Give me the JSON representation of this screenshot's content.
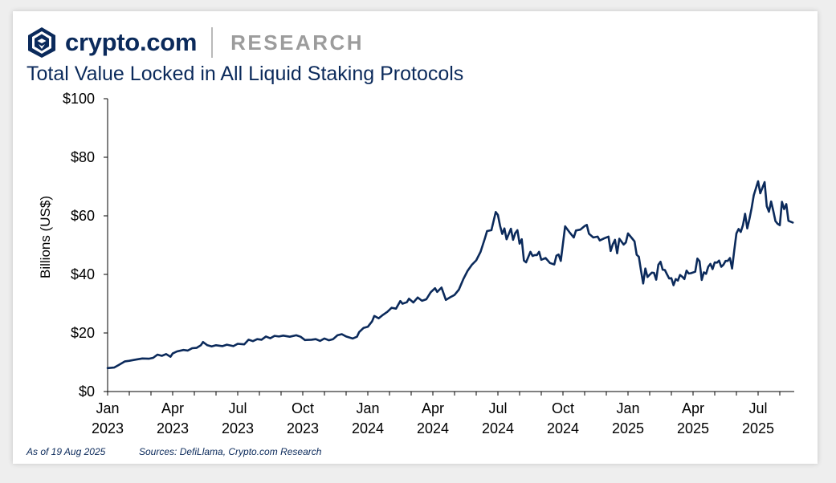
{
  "brand": {
    "name": "crypto.com",
    "section": "RESEARCH",
    "colors": {
      "navy": "#0b2a5b",
      "gray": "#9c9c9c"
    }
  },
  "footer": {
    "as_of": "As of 19 Aug 2025",
    "sources": "Sources: DefiLlama, Crypto.com Research"
  },
  "chart_data": {
    "type": "line",
    "title": "Total Value Locked in All Liquid Staking Protocols",
    "xlabel": "",
    "ylabel": "Billions (US$)",
    "ylim": [
      0,
      100
    ],
    "yticks": [
      0,
      20,
      40,
      60,
      80,
      100
    ],
    "ytick_labels": [
      "$0",
      "$20",
      "$40",
      "$60",
      "$80",
      "$100"
    ],
    "xticks": [
      {
        "date": "2023-01",
        "line1": "Jan",
        "line2": "2023"
      },
      {
        "date": "2023-04",
        "line1": "Apr",
        "line2": "2023"
      },
      {
        "date": "2023-07",
        "line1": "Jul",
        "line2": "2023"
      },
      {
        "date": "2023-10",
        "line1": "Oct",
        "line2": "2023"
      },
      {
        "date": "2024-01",
        "line1": "Jan",
        "line2": "2024"
      },
      {
        "date": "2024-04",
        "line1": "Apr",
        "line2": "2024"
      },
      {
        "date": "2024-07",
        "line1": "Jul",
        "line2": "2024"
      },
      {
        "date": "2024-10",
        "line1": "Oct",
        "line2": "2024"
      },
      {
        "date": "2025-01",
        "line1": "Jan",
        "line2": "2025"
      },
      {
        "date": "2025-04",
        "line1": "Apr",
        "line2": "2025"
      },
      {
        "date": "2025-07",
        "line1": "Jul",
        "line2": "2025"
      }
    ],
    "x_unit": "months since Jan 2023",
    "xlim": [
      0,
      31.6
    ],
    "line_color": "#0b2a5b",
    "series": [
      {
        "name": "TVL",
        "points": [
          [
            0.0,
            8.0
          ],
          [
            0.3,
            8.2
          ],
          [
            0.5,
            9.0
          ],
          [
            0.8,
            10.3
          ],
          [
            1.0,
            10.5
          ],
          [
            1.3,
            10.9
          ],
          [
            1.6,
            11.3
          ],
          [
            1.9,
            11.2
          ],
          [
            2.1,
            11.5
          ],
          [
            2.3,
            12.6
          ],
          [
            2.5,
            12.2
          ],
          [
            2.7,
            12.8
          ],
          [
            2.9,
            11.9
          ],
          [
            3.0,
            13.0
          ],
          [
            3.2,
            13.7
          ],
          [
            3.5,
            14.2
          ],
          [
            3.7,
            14.0
          ],
          [
            3.9,
            14.8
          ],
          [
            4.1,
            14.9
          ],
          [
            4.3,
            15.8
          ],
          [
            4.4,
            16.9
          ],
          [
            4.6,
            15.8
          ],
          [
            4.8,
            15.4
          ],
          [
            5.0,
            15.8
          ],
          [
            5.3,
            15.5
          ],
          [
            5.5,
            16.0
          ],
          [
            5.8,
            15.5
          ],
          [
            6.0,
            16.3
          ],
          [
            6.3,
            16.1
          ],
          [
            6.5,
            17.7
          ],
          [
            6.7,
            17.2
          ],
          [
            6.9,
            17.9
          ],
          [
            7.1,
            17.7
          ],
          [
            7.3,
            18.8
          ],
          [
            7.5,
            18.2
          ],
          [
            7.7,
            19.0
          ],
          [
            7.9,
            18.8
          ],
          [
            8.1,
            19.1
          ],
          [
            8.4,
            18.7
          ],
          [
            8.7,
            19.2
          ],
          [
            8.9,
            18.7
          ],
          [
            9.1,
            17.6
          ],
          [
            9.4,
            17.7
          ],
          [
            9.6,
            17.9
          ],
          [
            9.8,
            17.3
          ],
          [
            10.0,
            18.1
          ],
          [
            10.2,
            17.5
          ],
          [
            10.4,
            17.9
          ],
          [
            10.6,
            19.2
          ],
          [
            10.8,
            19.6
          ],
          [
            11.0,
            18.8
          ],
          [
            11.3,
            18.1
          ],
          [
            11.5,
            18.7
          ],
          [
            11.6,
            20.3
          ],
          [
            11.8,
            21.7
          ],
          [
            12.0,
            22.1
          ],
          [
            12.2,
            24.0
          ],
          [
            12.3,
            25.8
          ],
          [
            12.5,
            25.0
          ],
          [
            12.7,
            26.2
          ],
          [
            12.9,
            27.2
          ],
          [
            13.1,
            28.6
          ],
          [
            13.3,
            28.3
          ],
          [
            13.5,
            30.9
          ],
          [
            13.6,
            30.0
          ],
          [
            13.8,
            30.5
          ],
          [
            13.9,
            31.7
          ],
          [
            14.1,
            30.4
          ],
          [
            14.3,
            32.1
          ],
          [
            14.5,
            31.0
          ],
          [
            14.7,
            31.5
          ],
          [
            14.9,
            33.9
          ],
          [
            15.1,
            35.3
          ],
          [
            15.2,
            34.0
          ],
          [
            15.4,
            35.5
          ],
          [
            15.6,
            31.3
          ],
          [
            15.8,
            32.2
          ],
          [
            16.0,
            33.0
          ],
          [
            16.2,
            34.8
          ],
          [
            16.4,
            38.3
          ],
          [
            16.6,
            41.2
          ],
          [
            16.8,
            43.3
          ],
          [
            17.0,
            44.8
          ],
          [
            17.2,
            47.7
          ],
          [
            17.4,
            52.3
          ],
          [
            17.5,
            54.8
          ],
          [
            17.7,
            55.1
          ],
          [
            17.8,
            58.2
          ],
          [
            17.9,
            61.3
          ],
          [
            18.0,
            60.3
          ],
          [
            18.1,
            56.6
          ],
          [
            18.2,
            53.8
          ],
          [
            18.3,
            55.7
          ],
          [
            18.4,
            52.0
          ],
          [
            18.6,
            55.6
          ],
          [
            18.7,
            51.8
          ],
          [
            18.8,
            54.1
          ],
          [
            18.9,
            55.1
          ],
          [
            19.0,
            50.5
          ],
          [
            19.1,
            52.0
          ],
          [
            19.2,
            44.7
          ],
          [
            19.3,
            44.1
          ],
          [
            19.5,
            47.7
          ],
          [
            19.6,
            46.3
          ],
          [
            19.7,
            46.6
          ],
          [
            19.8,
            46.6
          ],
          [
            19.9,
            47.7
          ],
          [
            20.0,
            45.0
          ],
          [
            20.2,
            45.6
          ],
          [
            20.4,
            43.9
          ],
          [
            20.6,
            43.4
          ],
          [
            20.7,
            46.4
          ],
          [
            20.8,
            46.8
          ],
          [
            20.9,
            44.6
          ],
          [
            21.1,
            56.4
          ],
          [
            21.3,
            54.4
          ],
          [
            21.5,
            52.6
          ],
          [
            21.6,
            55.0
          ],
          [
            21.8,
            55.3
          ],
          [
            22.0,
            56.5
          ],
          [
            22.1,
            56.9
          ],
          [
            22.2,
            53.9
          ],
          [
            22.4,
            52.6
          ],
          [
            22.6,
            52.9
          ],
          [
            22.7,
            51.6
          ],
          [
            22.9,
            52.3
          ],
          [
            23.1,
            52.9
          ],
          [
            23.2,
            48.0
          ],
          [
            23.3,
            50.3
          ],
          [
            23.4,
            51.8
          ],
          [
            23.5,
            47.2
          ],
          [
            23.6,
            52.2
          ],
          [
            23.8,
            50.2
          ],
          [
            23.9,
            50.9
          ],
          [
            24.0,
            54.0
          ],
          [
            24.2,
            52.2
          ],
          [
            24.3,
            51.3
          ],
          [
            24.4,
            46.7
          ],
          [
            24.5,
            46.0
          ],
          [
            24.6,
            41.3
          ],
          [
            24.7,
            36.9
          ],
          [
            24.8,
            42.0
          ],
          [
            24.9,
            39.1
          ],
          [
            25.0,
            39.9
          ],
          [
            25.1,
            40.6
          ],
          [
            25.2,
            40.5
          ],
          [
            25.3,
            38.2
          ],
          [
            25.4,
            43.3
          ],
          [
            25.5,
            44.3
          ],
          [
            25.6,
            41.6
          ],
          [
            25.7,
            41.5
          ],
          [
            25.8,
            40.0
          ],
          [
            25.9,
            38.6
          ],
          [
            26.0,
            38.7
          ],
          [
            26.1,
            36.3
          ],
          [
            26.2,
            38.4
          ],
          [
            26.3,
            37.9
          ],
          [
            26.4,
            39.8
          ],
          [
            26.5,
            39.2
          ],
          [
            26.6,
            38.4
          ],
          [
            26.7,
            41.3
          ],
          [
            26.8,
            40.3
          ],
          [
            26.9,
            40.4
          ],
          [
            27.1,
            40.9
          ],
          [
            27.2,
            45.4
          ],
          [
            27.3,
            44.5
          ],
          [
            27.4,
            38.1
          ],
          [
            27.5,
            40.7
          ],
          [
            27.6,
            40.2
          ],
          [
            27.7,
            42.6
          ],
          [
            27.8,
            43.6
          ],
          [
            27.9,
            41.8
          ],
          [
            28.0,
            44.1
          ],
          [
            28.1,
            44.0
          ],
          [
            28.2,
            44.7
          ],
          [
            28.3,
            42.6
          ],
          [
            28.4,
            43.3
          ],
          [
            28.5,
            44.6
          ],
          [
            28.6,
            44.6
          ],
          [
            28.7,
            45.6
          ],
          [
            28.8,
            42.0
          ],
          [
            28.9,
            48.2
          ],
          [
            29.0,
            54.0
          ],
          [
            29.1,
            55.5
          ],
          [
            29.2,
            54.5
          ],
          [
            29.3,
            56.8
          ],
          [
            29.4,
            60.7
          ],
          [
            29.5,
            55.7
          ],
          [
            29.6,
            58.9
          ],
          [
            29.7,
            62.6
          ],
          [
            29.8,
            67.0
          ],
          [
            30.0,
            71.8
          ],
          [
            30.1,
            67.7
          ],
          [
            30.3,
            71.5
          ],
          [
            30.4,
            63.3
          ],
          [
            30.5,
            61.4
          ],
          [
            30.6,
            64.9
          ],
          [
            30.7,
            61.7
          ],
          [
            30.8,
            58.2
          ],
          [
            30.9,
            57.3
          ],
          [
            31.0,
            56.8
          ],
          [
            31.1,
            64.8
          ],
          [
            31.2,
            62.3
          ],
          [
            31.3,
            64.0
          ],
          [
            31.4,
            58.3
          ],
          [
            31.6,
            57.7
          ]
        ]
      }
    ]
  }
}
